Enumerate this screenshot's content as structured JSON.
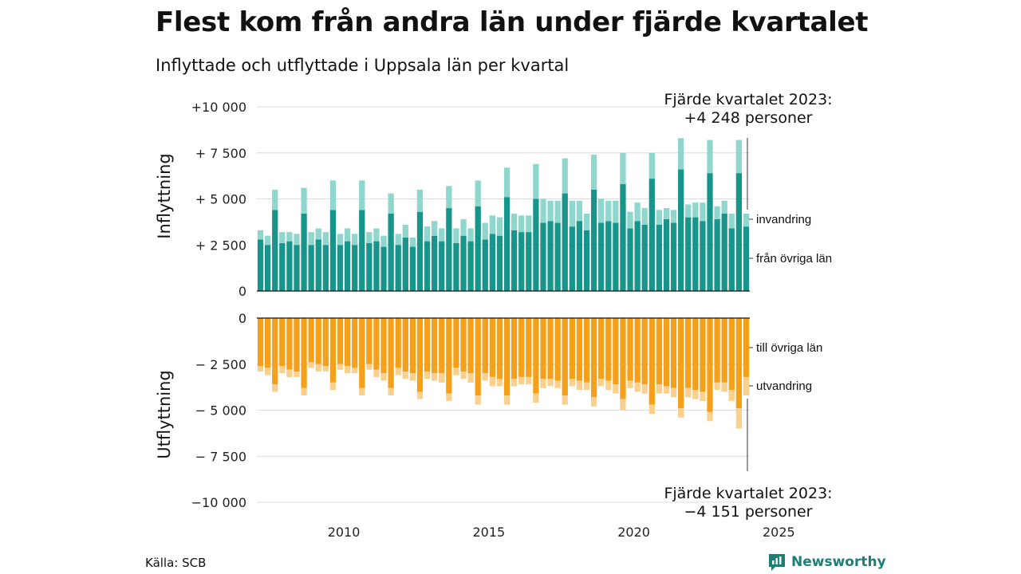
{
  "title": "Flest kom från andra län under fjärde kvartalet",
  "subtitle": "Inflyttade och utflyttade i Uppsala län per kvartal",
  "source": "Källa: SCB",
  "brand": "Newsworthy",
  "chart_data": {
    "type": "bar",
    "x_start": "2007 K1",
    "x_end": "2023 K4",
    "x_ticks": [
      "2010",
      "2015",
      "2020",
      "2025"
    ],
    "y_ticks_top": [
      "0",
      "+ 2 500",
      "+ 5 000",
      "+ 7 500",
      "+10 000"
    ],
    "y_ticks_bottom": [
      "0",
      "− 2 500",
      "− 5 000",
      "− 7 500",
      "−10 000"
    ],
    "ylim_top": [
      0,
      10000
    ],
    "ylim_bottom": [
      -10000,
      0
    ],
    "ylabel_top": "Inflyttning",
    "ylabel_bottom": "Utflyttning",
    "colors": {
      "fran_ovriga_lan": "#17958a",
      "invandring": "#8fd6cc",
      "till_ovriga_lan": "#f5a01a",
      "utvandring": "#f9d08e"
    },
    "legend": {
      "fran_ovriga_lan": "från övriga län",
      "invandring": "invandring",
      "till_ovriga_lan": "till övriga län",
      "utvandring": "utvandring"
    },
    "annotation_top": [
      "Fjärde kvartalet 2023:",
      "+4 248 personer"
    ],
    "annotation_bottom": [
      "Fjärde kvartalet 2023:",
      "−4 151 personer"
    ],
    "series": [
      {
        "name": "från övriga län",
        "values": [
          2800,
          2500,
          4400,
          2600,
          2700,
          2500,
          4200,
          2500,
          2800,
          2500,
          4400,
          2500,
          2700,
          2500,
          4400,
          2600,
          2700,
          2400,
          4200,
          2500,
          2900,
          2400,
          4300,
          2700,
          3000,
          2700,
          4500,
          2600,
          3000,
          2700,
          4600,
          2800,
          3100,
          3000,
          5100,
          3300,
          3200,
          3200,
          5000,
          3700,
          3800,
          3700,
          5300,
          3500,
          3800,
          3300,
          5500,
          3700,
          3800,
          3700,
          5800,
          3400,
          3800,
          3600,
          6100,
          3600,
          3900,
          3700,
          6600,
          4000,
          4000,
          3800,
          6400,
          3900,
          4200,
          3400,
          6400,
          3500
        ]
      },
      {
        "name": "invandring",
        "values": [
          500,
          500,
          1100,
          600,
          500,
          600,
          1400,
          700,
          600,
          700,
          1600,
          600,
          700,
          600,
          1600,
          600,
          700,
          600,
          1100,
          600,
          700,
          500,
          1200,
          800,
          800,
          700,
          1200,
          800,
          900,
          700,
          1400,
          900,
          1000,
          1000,
          1600,
          900,
          900,
          900,
          1900,
          1300,
          1100,
          1200,
          1900,
          1400,
          1100,
          900,
          1900,
          1300,
          1100,
          1200,
          1700,
          900,
          1000,
          900,
          1400,
          800,
          600,
          700,
          1700,
          700,
          800,
          1000,
          1800,
          700,
          700,
          800,
          1800,
          700
        ]
      },
      {
        "name": "till övriga län",
        "values": [
          -2600,
          -2700,
          -3600,
          -2600,
          -2800,
          -2900,
          -3800,
          -2400,
          -2500,
          -2600,
          -3500,
          -2500,
          -2600,
          -2700,
          -3800,
          -2500,
          -2800,
          -3000,
          -3800,
          -2700,
          -2900,
          -3000,
          -4000,
          -2900,
          -3000,
          -3000,
          -4100,
          -2700,
          -2900,
          -3000,
          -4200,
          -3000,
          -3200,
          -3300,
          -4200,
          -3300,
          -3200,
          -3200,
          -4100,
          -3300,
          -3300,
          -3400,
          -4200,
          -3300,
          -3400,
          -3500,
          -4300,
          -3300,
          -3400,
          -3600,
          -4400,
          -3400,
          -3500,
          -3600,
          -4700,
          -3600,
          -3700,
          -3800,
          -4900,
          -3800,
          -3900,
          -4000,
          -5100,
          -3500,
          -3500,
          -3900,
          -4900,
          -3200
        ]
      },
      {
        "name": "utvandring",
        "values": [
          -300,
          -400,
          -400,
          -400,
          -400,
          -300,
          -400,
          -300,
          -400,
          -300,
          -400,
          -300,
          -400,
          -300,
          -400,
          -300,
          -400,
          -400,
          -400,
          -400,
          -400,
          -400,
          -400,
          -400,
          -400,
          -500,
          -400,
          -400,
          -400,
          -500,
          -500,
          -400,
          -500,
          -400,
          -500,
          -400,
          -400,
          -400,
          -500,
          -500,
          -400,
          -400,
          -500,
          -400,
          -500,
          -400,
          -500,
          -400,
          -500,
          -500,
          -600,
          -400,
          -500,
          -500,
          -500,
          -500,
          -400,
          -500,
          -500,
          -500,
          -500,
          -500,
          -500,
          -400,
          -500,
          -600,
          -1100,
          -1000
        ]
      }
    ]
  }
}
